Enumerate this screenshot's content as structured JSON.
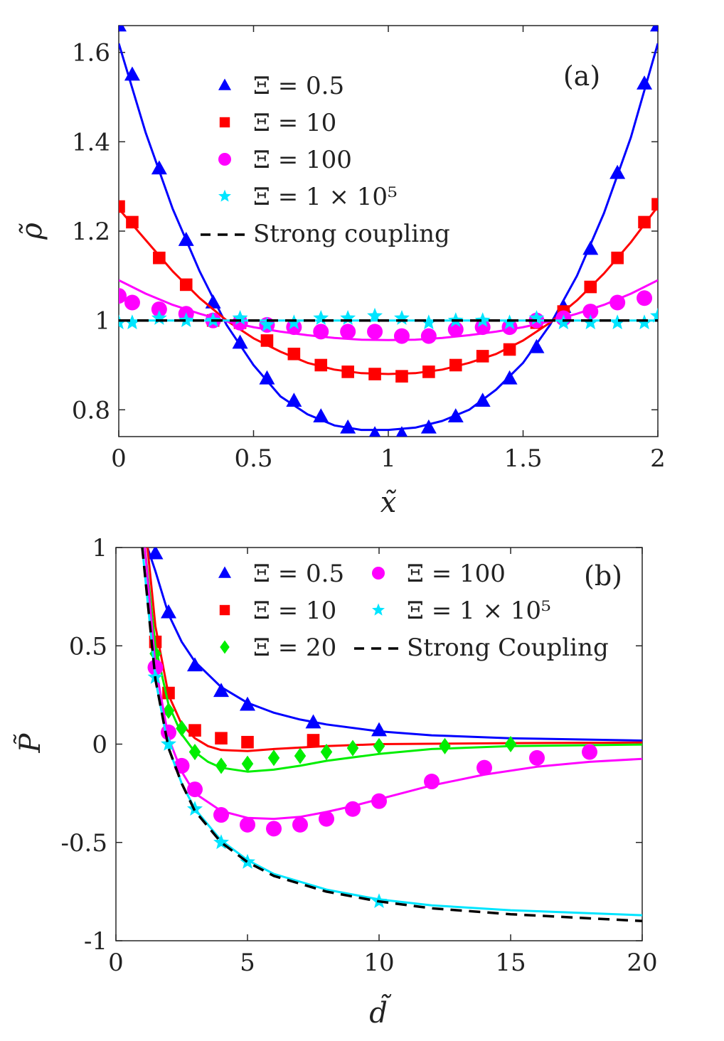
{
  "chart_data": [
    {
      "type": "scatter",
      "panel_label": "(a)",
      "xlabel": "x̃",
      "ylabel": "ρ̃",
      "xlim": [
        0,
        2
      ],
      "ylim": [
        0.74,
        1.66
      ],
      "xticks": [
        0,
        0.5,
        1,
        1.5,
        2
      ],
      "xtick_labels": [
        "0",
        "0.5",
        "1",
        "1.5",
        "2"
      ],
      "yticks": [
        0.8,
        1,
        1.2,
        1.4,
        1.6
      ],
      "ytick_labels": [
        "0.8",
        "1",
        "1.2",
        "1.4",
        "1.6"
      ],
      "grid": false,
      "legend_position": "top-center",
      "series": [
        {
          "name": "Ξ = 0.5",
          "color": "#0000ff",
          "marker": "triangle",
          "x": [
            0,
            0.05,
            0.15,
            0.25,
            0.35,
            0.45,
            0.55,
            0.65,
            0.75,
            0.85,
            0.95,
            1.05,
            1.15,
            1.25,
            1.35,
            1.45,
            1.55,
            1.65,
            1.75,
            1.85,
            1.95,
            2
          ],
          "y": [
            1.66,
            1.55,
            1.34,
            1.18,
            1.04,
            0.95,
            0.87,
            0.82,
            0.785,
            0.76,
            0.745,
            0.745,
            0.76,
            0.785,
            0.82,
            0.87,
            0.94,
            1.03,
            1.16,
            1.33,
            1.53,
            1.66
          ],
          "fit": [
            [
              0,
              1.62
            ],
            [
              0.1,
              1.42
            ],
            [
              0.2,
              1.25
            ],
            [
              0.3,
              1.11
            ],
            [
              0.4,
              0.99
            ],
            [
              0.5,
              0.9
            ],
            [
              0.6,
              0.83
            ],
            [
              0.7,
              0.79
            ],
            [
              0.8,
              0.765
            ],
            [
              0.9,
              0.755
            ],
            [
              1.0,
              0.755
            ],
            [
              1.1,
              0.76
            ],
            [
              1.2,
              0.775
            ],
            [
              1.3,
              0.8
            ],
            [
              1.4,
              0.845
            ],
            [
              1.5,
              0.905
            ],
            [
              1.6,
              0.99
            ],
            [
              1.7,
              1.1
            ],
            [
              1.8,
              1.24
            ],
            [
              1.9,
              1.41
            ],
            [
              2.0,
              1.62
            ]
          ]
        },
        {
          "name": "Ξ = 10",
          "color": "#ff0000",
          "marker": "square",
          "x": [
            0,
            0.05,
            0.15,
            0.25,
            0.35,
            0.45,
            0.55,
            0.65,
            0.75,
            0.85,
            0.95,
            1.05,
            1.15,
            1.25,
            1.35,
            1.45,
            1.55,
            1.65,
            1.75,
            1.85,
            1.95,
            2
          ],
          "y": [
            1.255,
            1.22,
            1.14,
            1.08,
            1.0,
            0.995,
            0.955,
            0.925,
            0.9,
            0.885,
            0.88,
            0.875,
            0.885,
            0.9,
            0.92,
            0.935,
            0.995,
            1.02,
            1.075,
            1.14,
            1.22,
            1.26
          ],
          "fit": [
            [
              0,
              1.25
            ],
            [
              0.1,
              1.18
            ],
            [
              0.2,
              1.11
            ],
            [
              0.3,
              1.05
            ],
            [
              0.4,
              1.0
            ],
            [
              0.5,
              0.96
            ],
            [
              0.6,
              0.93
            ],
            [
              0.7,
              0.905
            ],
            [
              0.8,
              0.89
            ],
            [
              0.9,
              0.882
            ],
            [
              1.0,
              0.88
            ],
            [
              1.1,
              0.882
            ],
            [
              1.2,
              0.89
            ],
            [
              1.3,
              0.905
            ],
            [
              1.4,
              0.925
            ],
            [
              1.5,
              0.955
            ],
            [
              1.6,
              0.995
            ],
            [
              1.7,
              1.045
            ],
            [
              1.8,
              1.105
            ],
            [
              1.9,
              1.175
            ],
            [
              2.0,
              1.255
            ]
          ]
        },
        {
          "name": "Ξ = 100",
          "color": "#ff00ff",
          "marker": "circle",
          "x": [
            0,
            0.05,
            0.15,
            0.25,
            0.35,
            0.45,
            0.55,
            0.65,
            0.75,
            0.85,
            0.95,
            1.05,
            1.15,
            1.25,
            1.35,
            1.45,
            1.55,
            1.65,
            1.75,
            1.85,
            1.95
          ],
          "y": [
            1.055,
            1.04,
            1.025,
            1.015,
            1.0,
            0.995,
            0.99,
            0.985,
            0.975,
            0.975,
            0.975,
            0.965,
            0.965,
            0.98,
            0.985,
            0.985,
            1.0,
            1.005,
            1.02,
            1.04,
            1.05
          ],
          "fit": [
            [
              0,
              1.09
            ],
            [
              0.1,
              1.06
            ],
            [
              0.2,
              1.035
            ],
            [
              0.3,
              1.015
            ],
            [
              0.4,
              0.998
            ],
            [
              0.5,
              0.985
            ],
            [
              0.6,
              0.975
            ],
            [
              0.7,
              0.967
            ],
            [
              0.8,
              0.961
            ],
            [
              0.9,
              0.957
            ],
            [
              1.0,
              0.956
            ],
            [
              1.1,
              0.957
            ],
            [
              1.2,
              0.961
            ],
            [
              1.3,
              0.967
            ],
            [
              1.4,
              0.975
            ],
            [
              1.5,
              0.985
            ],
            [
              1.6,
              0.998
            ],
            [
              1.7,
              1.015
            ],
            [
              1.8,
              1.035
            ],
            [
              1.9,
              1.06
            ],
            [
              2.0,
              1.09
            ]
          ]
        },
        {
          "name": "Ξ = 1 × 10⁵",
          "color": "#00e5ff",
          "marker": "star",
          "x": [
            0,
            0.05,
            0.15,
            0.25,
            0.35,
            0.45,
            0.55,
            0.65,
            0.75,
            0.85,
            0.95,
            1.05,
            1.15,
            1.25,
            1.35,
            1.45,
            1.55,
            1.65,
            1.75,
            1.85,
            1.95,
            2
          ],
          "y": [
            0.995,
            0.995,
            1.005,
            1.0,
            1.0,
            1.005,
            0.99,
            0.995,
            1.005,
            1.005,
            1.01,
            1.005,
            0.995,
            1.0,
            1.0,
            0.995,
            1.005,
            0.995,
            0.995,
            0.995,
            0.995,
            1.01
          ],
          "fit": [
            [
              0,
              1.0
            ],
            [
              2,
              1.0
            ]
          ]
        },
        {
          "name": "Strong coupling",
          "color": "#000000",
          "marker": "dashed",
          "fit": [
            [
              0,
              1.0
            ],
            [
              2,
              1.0
            ]
          ]
        }
      ]
    },
    {
      "type": "scatter",
      "panel_label": "(b)",
      "xlabel": "d̃",
      "ylabel": "P̃",
      "xlim": [
        0,
        20
      ],
      "ylim": [
        -1,
        1
      ],
      "xticks": [
        0,
        5,
        10,
        15,
        20
      ],
      "xtick_labels": [
        "0",
        "5",
        "10",
        "15",
        "20"
      ],
      "yticks": [
        -1,
        -0.5,
        0,
        0.5,
        1
      ],
      "ytick_labels": [
        "-1",
        "-0.5",
        "0",
        "0.5",
        "1"
      ],
      "grid": false,
      "legend_position": "top-right",
      "series": [
        {
          "name": "Ξ = 0.5",
          "color": "#0000ff",
          "marker": "triangle",
          "x": [
            1.5,
            2,
            3,
            4,
            5,
            7.5,
            10
          ],
          "y": [
            0.97,
            0.67,
            0.4,
            0.27,
            0.2,
            0.11,
            0.07
          ],
          "fit": [
            [
              1.2,
              1.0
            ],
            [
              1.5,
              0.88
            ],
            [
              2,
              0.66
            ],
            [
              2.5,
              0.52
            ],
            [
              3,
              0.42
            ],
            [
              4,
              0.29
            ],
            [
              5,
              0.21
            ],
            [
              6,
              0.16
            ],
            [
              7,
              0.125
            ],
            [
              8,
              0.1
            ],
            [
              10,
              0.065
            ],
            [
              12,
              0.045
            ],
            [
              15,
              0.03
            ],
            [
              20,
              0.018
            ]
          ]
        },
        {
          "name": "Ξ = 10",
          "color": "#ff0000",
          "marker": "square",
          "x": [
            1.5,
            2,
            3,
            4,
            5,
            7.5
          ],
          "y": [
            0.52,
            0.26,
            0.07,
            0.03,
            0.01,
            0.02
          ],
          "fit": [
            [
              1.2,
              1.0
            ],
            [
              1.5,
              0.6
            ],
            [
              2,
              0.25
            ],
            [
              2.5,
              0.1
            ],
            [
              3,
              0.03
            ],
            [
              3.5,
              -0.01
            ],
            [
              4,
              -0.03
            ],
            [
              5,
              -0.035
            ],
            [
              6,
              -0.025
            ],
            [
              8,
              -0.01
            ],
            [
              10,
              0.0
            ],
            [
              15,
              0.005
            ],
            [
              20,
              0.008
            ]
          ]
        },
        {
          "name": "Ξ = 20",
          "color": "#00ee00",
          "marker": "diamond",
          "x": [
            1.5,
            2,
            2.5,
            3,
            4,
            5,
            6,
            7,
            8,
            9,
            10,
            12.5,
            15
          ],
          "y": [
            0.46,
            0.17,
            0.08,
            -0.04,
            -0.11,
            -0.1,
            -0.07,
            -0.06,
            -0.04,
            -0.02,
            -0.01,
            -0.01,
            0.0
          ],
          "fit": [
            [
              1.1,
              1.0
            ],
            [
              1.5,
              0.5
            ],
            [
              2,
              0.2
            ],
            [
              2.5,
              0.05
            ],
            [
              3,
              -0.04
            ],
            [
              3.5,
              -0.09
            ],
            [
              4,
              -0.12
            ],
            [
              5,
              -0.14
            ],
            [
              6,
              -0.13
            ],
            [
              7,
              -0.11
            ],
            [
              8,
              -0.085
            ],
            [
              10,
              -0.05
            ],
            [
              12,
              -0.025
            ],
            [
              15,
              -0.01
            ],
            [
              20,
              -0.002
            ]
          ]
        },
        {
          "name": "Ξ = 100",
          "color": "#ff00ff",
          "marker": "circle",
          "x": [
            1.5,
            2,
            2.5,
            3,
            4,
            5,
            6,
            7,
            8,
            9,
            10,
            12,
            14,
            16,
            18
          ],
          "y": [
            0.39,
            0.06,
            -0.11,
            -0.23,
            -0.36,
            -0.41,
            -0.43,
            -0.41,
            -0.38,
            -0.33,
            -0.29,
            -0.19,
            -0.12,
            -0.07,
            -0.04
          ],
          "fit": [
            [
              1.1,
              1.0
            ],
            [
              1.5,
              0.4
            ],
            [
              2,
              0.03
            ],
            [
              2.5,
              -0.14
            ],
            [
              3,
              -0.25
            ],
            [
              4,
              -0.34
            ],
            [
              5,
              -0.375
            ],
            [
              6,
              -0.38
            ],
            [
              7,
              -0.37
            ],
            [
              8,
              -0.345
            ],
            [
              9,
              -0.315
            ],
            [
              10,
              -0.28
            ],
            [
              12,
              -0.21
            ],
            [
              14,
              -0.155
            ],
            [
              16,
              -0.115
            ],
            [
              18,
              -0.09
            ],
            [
              20,
              -0.075
            ]
          ]
        },
        {
          "name": "Ξ = 1 × 10⁵",
          "color": "#00e5ff",
          "marker": "star",
          "x": [
            1.5,
            2,
            3,
            4,
            5,
            10
          ],
          "y": [
            0.34,
            0.0,
            -0.33,
            -0.5,
            -0.6,
            -0.8
          ],
          "fit": [
            [
              1.0,
              1.0
            ],
            [
              1.5,
              0.33
            ],
            [
              2,
              -0.02
            ],
            [
              2.5,
              -0.2
            ],
            [
              3,
              -0.33
            ],
            [
              4,
              -0.49
            ],
            [
              5,
              -0.59
            ],
            [
              6,
              -0.66
            ],
            [
              8,
              -0.74
            ],
            [
              10,
              -0.79
            ],
            [
              12,
              -0.82
            ],
            [
              15,
              -0.845
            ],
            [
              20,
              -0.87
            ]
          ]
        },
        {
          "name": "Strong Coupling",
          "color": "#000000",
          "marker": "dashed",
          "fit": [
            [
              1.0,
              1.0
            ],
            [
              1.5,
              0.33
            ],
            [
              2,
              -0.02
            ],
            [
              2.5,
              -0.2
            ],
            [
              3,
              -0.34
            ],
            [
              4,
              -0.5
            ],
            [
              5,
              -0.6
            ],
            [
              6,
              -0.67
            ],
            [
              8,
              -0.75
            ],
            [
              10,
              -0.8
            ],
            [
              12,
              -0.835
            ],
            [
              15,
              -0.865
            ],
            [
              20,
              -0.9
            ]
          ]
        }
      ]
    }
  ]
}
